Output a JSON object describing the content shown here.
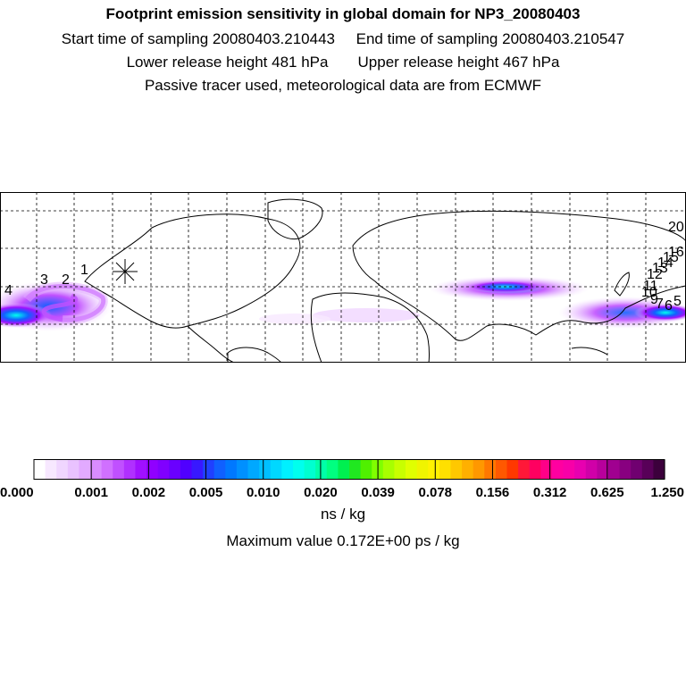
{
  "header": {
    "title": "Footprint emission sensitivity in global domain for NP3_20080403",
    "start_label": "Start time of sampling 20080403.210443",
    "end_label": "End time of sampling 20080403.210547",
    "lower_label": "Lower release height  481 hPa",
    "upper_label": "Upper release height  467 hPa",
    "tracer_label": "Passive tracer used, meteorological data are from ECMWF"
  },
  "map": {
    "day_markers": [
      "1",
      "2",
      "3",
      "4",
      "5",
      "6",
      "7",
      "9",
      "10",
      "11",
      "12",
      "13",
      "14",
      "15",
      "16",
      "20"
    ],
    "release_marker": "release-point-star-icon",
    "grid": true
  },
  "colorbar": {
    "tick_labels": [
      "0.000",
      "0.001",
      "0.002",
      "0.005",
      "0.010",
      "0.020",
      "0.039",
      "0.078",
      "0.156",
      "0.312",
      "0.625",
      "1.250"
    ],
    "segment_colors": [
      "#ffffff",
      "#f7e8ff",
      "#f0d6ff",
      "#e9c2ff",
      "#e2aaff",
      "#d98cff",
      "#d070ff",
      "#c050ff",
      "#b030ff",
      "#a010ff",
      "#9000ff",
      "#8000ff",
      "#6a00ff",
      "#5000ff",
      "#3818ff",
      "#2040ff",
      "#1060ff",
      "#0078ff",
      "#0090ff",
      "#00a8ff",
      "#00c0ff",
      "#00d8ff",
      "#00f0ff",
      "#00ffee",
      "#00ffd0",
      "#00ffa8",
      "#00ff80",
      "#00f050",
      "#20e820",
      "#50f000",
      "#80ff00",
      "#a8ff00",
      "#c8ff00",
      "#e0ff00",
      "#f0f400",
      "#fff200",
      "#ffe000",
      "#ffc800",
      "#ffb000",
      "#ff9800",
      "#ff7800",
      "#ff5800",
      "#ff3800",
      "#ff1838",
      "#ff0060",
      "#ff0088",
      "#ff00a0",
      "#f800a8",
      "#e800b0",
      "#d000a8",
      "#b8009c",
      "#a00090",
      "#880080",
      "#700070",
      "#580058",
      "#3c003c"
    ],
    "unit": "ns / kg"
  },
  "max_value_label": "Maximum value  0.172E+00 ps / kg"
}
